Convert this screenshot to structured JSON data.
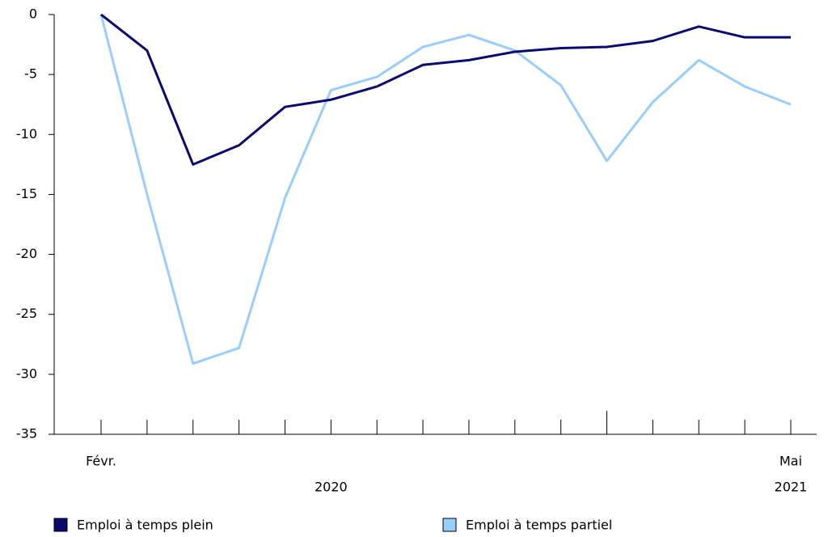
{
  "chart_data": {
    "type": "line",
    "categories": [
      "Févr.",
      null,
      null,
      null,
      null,
      null,
      null,
      null,
      null,
      null,
      null,
      null,
      null,
      null,
      null,
      "Mai"
    ],
    "year_labels": [
      "2020",
      "2021"
    ],
    "series": [
      {
        "name": "Emploi à temps plein",
        "color": "#0a0a6e",
        "values": [
          0,
          -3.0,
          -12.5,
          -10.9,
          -7.7,
          -7.1,
          -6.0,
          -4.2,
          -3.8,
          -3.1,
          -2.8,
          -2.7,
          -2.2,
          -1.0,
          -1.9,
          -1.9
        ]
      },
      {
        "name": "Emploi à temps partiel",
        "color": "#99ccff",
        "values": [
          0,
          -15.0,
          -29.1,
          -27.8,
          -15.3,
          -6.3,
          -5.2,
          -2.7,
          -1.7,
          -3.0,
          -5.9,
          -12.2,
          -7.3,
          -3.8,
          -6.0,
          -7.5
        ]
      }
    ],
    "ylim": [
      -35,
      0
    ],
    "yticks": [
      0,
      -5,
      -10,
      -15,
      -20,
      -25,
      -30,
      -35
    ]
  }
}
